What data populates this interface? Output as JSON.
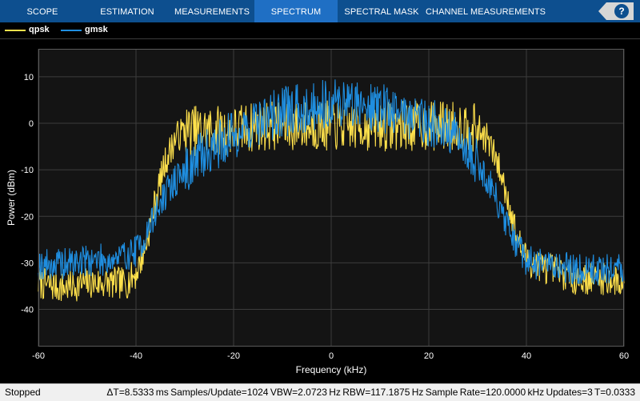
{
  "tabs": [
    {
      "label": "SCOPE",
      "active": false
    },
    {
      "label": "ESTIMATION",
      "active": false
    },
    {
      "label": "MEASUREMENTS",
      "active": false
    },
    {
      "label": "SPECTRUM",
      "active": true
    },
    {
      "label": "SPECTRAL MASK",
      "active": false
    },
    {
      "label": "CHANNEL MEASUREMENTS",
      "active": false
    }
  ],
  "help_label": "?",
  "legend": [
    {
      "label": "qpsk",
      "color": "#ffe14c"
    },
    {
      "label": "gmsk",
      "color": "#1f8ee0"
    }
  ],
  "status": {
    "state": "Stopped",
    "info": "ΔT=8.5333 ms  Samples/Update=1024  VBW=2.0723 Hz  RBW=117.1875 Hz  Sample Rate=120.0000 kHz  Updates=3  T=0.0333"
  },
  "chart_data": {
    "type": "line",
    "xlabel": "Frequency (kHz)",
    "ylabel": "Power (dBm)",
    "xlim": [
      -60,
      60
    ],
    "ylim": [
      -48,
      16
    ],
    "xticks": [
      -60,
      -40,
      -20,
      0,
      20,
      40,
      60
    ],
    "yticks": [
      -40,
      -30,
      -20,
      -10,
      0,
      10
    ],
    "grid": true,
    "legend_position": "top-left",
    "series": [
      {
        "name": "qpsk",
        "color": "#ffe14c",
        "x": [
          -60,
          -55,
          -50,
          -45,
          -42,
          -40,
          -38,
          -36,
          -34,
          -32,
          -30,
          -25,
          -20,
          -15,
          -10,
          -5,
          0,
          5,
          10,
          15,
          20,
          25,
          28,
          30,
          32,
          34,
          36,
          38,
          40,
          42,
          45,
          50,
          55,
          60
        ],
        "values": [
          -34,
          -35,
          -34,
          -34,
          -34,
          -32,
          -26,
          -16,
          -8,
          -3,
          -1,
          -1,
          -1,
          0,
          0,
          0,
          0,
          0,
          0,
          0,
          0,
          0,
          0,
          -1,
          -3,
          -8,
          -15,
          -24,
          -29,
          -30,
          -31,
          -33,
          -33,
          -34
        ]
      },
      {
        "name": "gmsk",
        "color": "#1f8ee0",
        "x": [
          -60,
          -55,
          -50,
          -45,
          -42,
          -40,
          -38,
          -36,
          -34,
          -32,
          -30,
          -28,
          -25,
          -20,
          -15,
          -10,
          -5,
          0,
          5,
          10,
          15,
          20,
          25,
          28,
          30,
          32,
          34,
          36,
          38,
          40,
          42,
          45,
          50,
          55,
          60
        ],
        "values": [
          -30,
          -30,
          -29,
          -29,
          -28,
          -27,
          -24,
          -19,
          -15,
          -12,
          -10,
          -8,
          -5,
          -2,
          1,
          3,
          4,
          5,
          5,
          4,
          3,
          1,
          -2,
          -5,
          -8,
          -12,
          -16,
          -22,
          -26,
          -29,
          -30,
          -30,
          -31,
          -31,
          -31
        ]
      }
    ]
  }
}
